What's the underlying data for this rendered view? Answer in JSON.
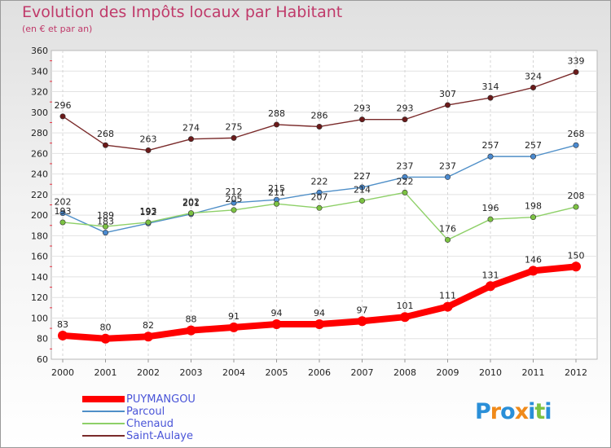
{
  "header": {
    "title": "Evolution des Impôts locaux par Habitant",
    "subtitle": "(en € et par an)"
  },
  "logo": {
    "letters": [
      "P",
      "r",
      "o",
      "x",
      "i",
      "t",
      "i"
    ],
    "colors": [
      "#2a8fd8",
      "#f08a1a",
      "#2a8fd8",
      "#f08a1a",
      "#2a8fd8",
      "#7cc242",
      "#2a8fd8"
    ]
  },
  "chart_data": {
    "type": "line",
    "title": "Evolution des Impôts locaux par Habitant",
    "subtitle": "(en € et par an)",
    "x": [
      "2000",
      "2001",
      "2002",
      "2003",
      "2004",
      "2005",
      "2006",
      "2007",
      "2008",
      "2009",
      "2010",
      "2011",
      "2012"
    ],
    "ylim": [
      60,
      360
    ],
    "yticks": [
      60,
      80,
      100,
      120,
      140,
      160,
      180,
      200,
      220,
      240,
      260,
      280,
      300,
      320,
      340,
      360
    ],
    "grid": true,
    "legend_position": "bottom-left",
    "series": [
      {
        "name": "PUYMANGOU",
        "values": [
          83,
          80,
          82,
          88,
          91,
          94,
          94,
          97,
          101,
          111,
          131,
          146,
          150
        ],
        "color": "#ff0000",
        "emphasis": true
      },
      {
        "name": "Parcoul",
        "values": [
          202,
          183,
          192,
          201,
          212,
          215,
          222,
          227,
          237,
          237,
          257,
          257,
          268
        ],
        "color": "#4f8fc8",
        "marker_color": "#4a8ad0",
        "emphasis": false
      },
      {
        "name": "Chenaud",
        "values": [
          193,
          189,
          193,
          202,
          205,
          211,
          207,
          214,
          222,
          176,
          196,
          198,
          208
        ],
        "color": "#8ed068",
        "marker_color": "#7cc242",
        "emphasis": false
      },
      {
        "name": "Saint-Aulaye",
        "values": [
          296,
          268,
          263,
          274,
          275,
          288,
          286,
          293,
          293,
          307,
          314,
          324,
          339
        ],
        "color": "#7a2a2a",
        "marker_color": "#6b1a1a",
        "emphasis": false
      }
    ]
  }
}
